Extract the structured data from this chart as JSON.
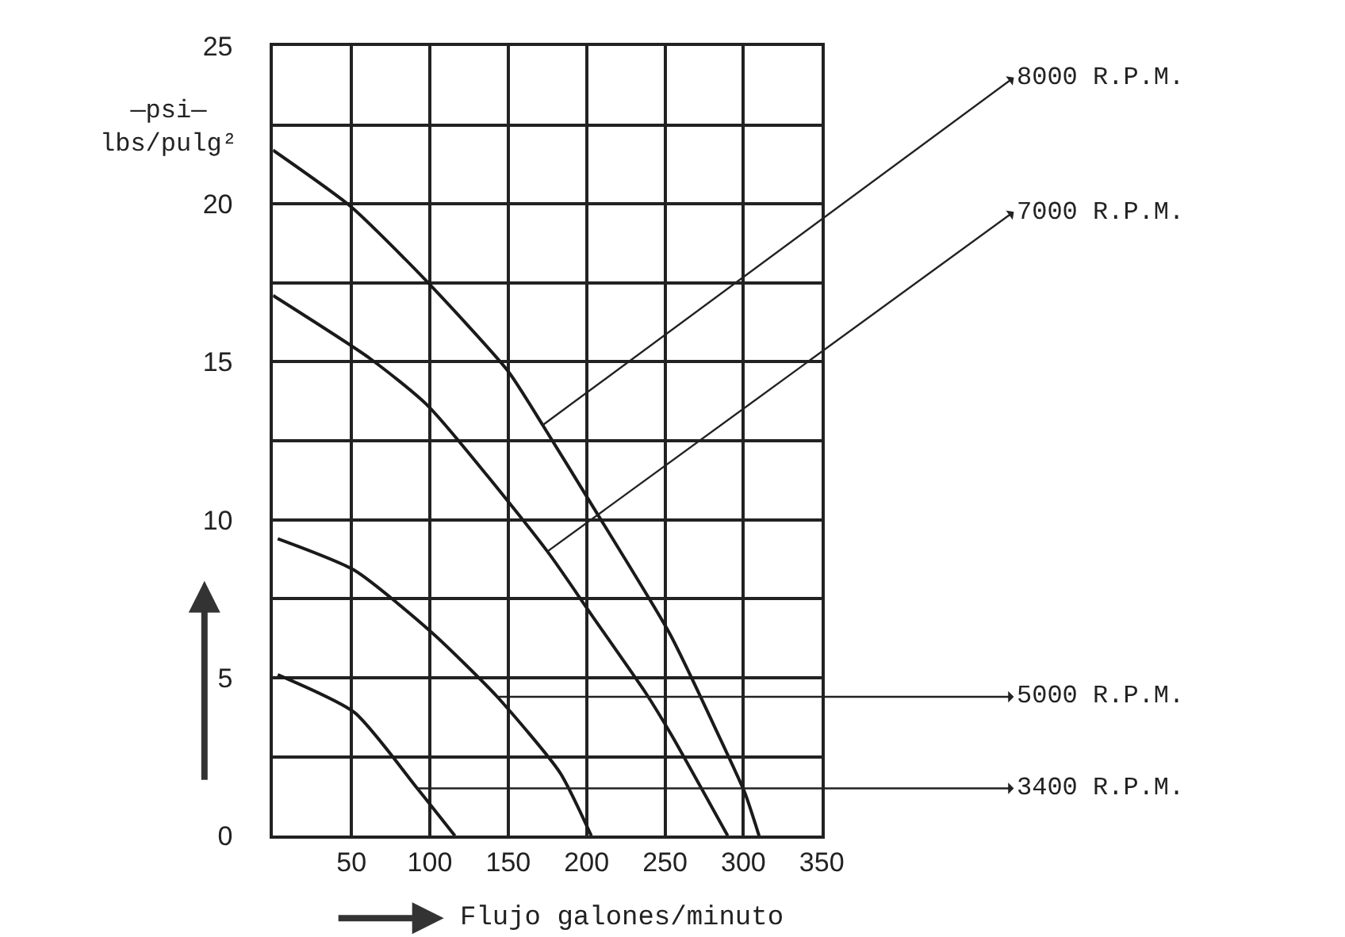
{
  "chart_data": {
    "type": "line",
    "xlabel": "Flujo galones/minuto",
    "ylabel": "—psi—\nlbs/pulg²",
    "series": [
      {
        "color": "#1a1a1a",
        "x": [
          0,
          50,
          99,
          150,
          172,
          203,
          253,
          284,
          301,
          310
        ],
        "values": [
          21.7,
          19.9,
          17.5,
          14.7,
          13.0,
          10.5,
          6.4,
          3.2,
          1.35,
          0
        ]
      },
      {
        "color": "#1a1a1a",
        "x": [
          0,
          62,
          99,
          175,
          203,
          238,
          254,
          290
        ],
        "values": [
          17.1,
          15.1,
          13.6,
          9.0,
          7.0,
          4.5,
          3.2,
          0
        ]
      },
      {
        "color": "#1a1a1a",
        "x": [
          3,
          52,
          102,
          143,
          183,
          203
        ],
        "values": [
          9.4,
          8.4,
          6.4,
          4.4,
          2.0,
          0
        ]
      },
      {
        "color": "#1a1a1a",
        "x": [
          3,
          52,
          92,
          116
        ],
        "values": [
          5.1,
          3.9,
          1.5,
          0
        ]
      }
    ],
    "annotations": [
      {
        "text": "8000 R.P.M.",
        "x": 172,
        "y": 13.0
      },
      {
        "text": "7000 R.P.M.",
        "x": 175,
        "y": 9.0
      },
      {
        "text": "5000 R.P.M.",
        "x": 143,
        "y": 4.4
      },
      {
        "text": "3400 R.P.M.",
        "x": 92,
        "y": 1.5
      }
    ],
    "xlim": [
      0,
      350
    ],
    "xticks": [
      {
        "value": 0,
        "label": null
      },
      50,
      100,
      150,
      200,
      250,
      300,
      350
    ],
    "ylim": [
      0,
      25
    ],
    "yticks": [
      0,
      {
        "value": 2.5,
        "label": null
      },
      5,
      {
        "value": 7.5,
        "label": null
      },
      10,
      {
        "value": 12.5,
        "label": null
      },
      15,
      {
        "value": 17.5,
        "label": null
      },
      20,
      {
        "value": 22.5,
        "label": null
      },
      25
    ],
    "grid": true,
    "marker": "none",
    "line_style": "solid"
  }
}
